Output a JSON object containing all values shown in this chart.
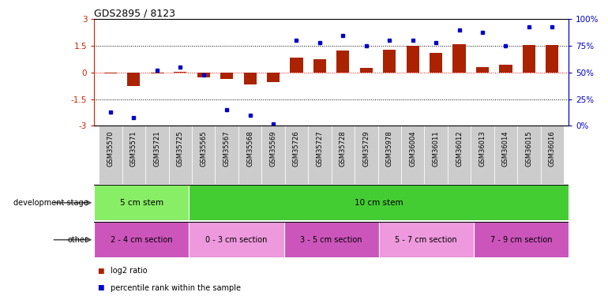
{
  "title": "GDS2895 / 8123",
  "samples": [
    "GSM35570",
    "GSM35571",
    "GSM35721",
    "GSM35725",
    "GSM35565",
    "GSM35567",
    "GSM35568",
    "GSM35569",
    "GSM35726",
    "GSM35727",
    "GSM35728",
    "GSM35729",
    "GSM35978",
    "GSM36004",
    "GSM36011",
    "GSM36012",
    "GSM36013",
    "GSM36014",
    "GSM36015",
    "GSM36016"
  ],
  "log2_ratio": [
    -0.05,
    -0.75,
    -0.04,
    0.06,
    -0.28,
    -0.38,
    -0.65,
    -0.55,
    0.85,
    0.75,
    1.25,
    0.25,
    1.3,
    1.5,
    1.1,
    1.6,
    0.3,
    0.45,
    1.55,
    1.55
  ],
  "percentile": [
    13,
    8,
    52,
    55,
    48,
    15,
    10,
    2,
    80,
    78,
    85,
    75,
    80,
    80,
    78,
    90,
    88,
    75,
    93,
    93
  ],
  "bar_color": "#aa2200",
  "dot_color": "#0000cc",
  "ylim": [
    -3,
    3
  ],
  "y2lim": [
    0,
    100
  ],
  "yticks": [
    -3,
    -1.5,
    0,
    1.5,
    3
  ],
  "y2ticks": [
    0,
    25,
    50,
    75,
    100
  ],
  "ytick_labels": [
    "-3",
    "-1.5",
    "0",
    "1.5",
    "3"
  ],
  "y2tick_labels": [
    "0%",
    "25%",
    "50%",
    "75%",
    "100%"
  ],
  "hlines_dotted": [
    -1.5,
    1.5
  ],
  "hline_red": 0,
  "dev_stage_groups": [
    {
      "label": "5 cm stem",
      "start": 0,
      "end": 4,
      "color": "#88ee66"
    },
    {
      "label": "10 cm stem",
      "start": 4,
      "end": 20,
      "color": "#44cc33"
    }
  ],
  "other_groups": [
    {
      "label": "2 - 4 cm section",
      "start": 0,
      "end": 4,
      "color": "#cc55bb"
    },
    {
      "label": "0 - 3 cm section",
      "start": 4,
      "end": 8,
      "color": "#ee99dd"
    },
    {
      "label": "3 - 5 cm section",
      "start": 8,
      "end": 12,
      "color": "#cc55bb"
    },
    {
      "label": "5 - 7 cm section",
      "start": 12,
      "end": 16,
      "color": "#ee99dd"
    },
    {
      "label": "7 - 9 cm section",
      "start": 16,
      "end": 20,
      "color": "#cc55bb"
    }
  ],
  "dev_label": "development stage",
  "other_label": "other",
  "legend_items": [
    {
      "label": "log2 ratio",
      "color": "#aa2200",
      "marker": "s"
    },
    {
      "label": "percentile rank within the sample",
      "color": "#0000cc",
      "marker": "s"
    }
  ],
  "tick_color_left": "#cc2200",
  "tick_color_right": "#0000cc",
  "bg_color": "#ffffff",
  "spine_color": "#000000",
  "row_separator_color": "#888888",
  "xtick_bg": "#cccccc"
}
